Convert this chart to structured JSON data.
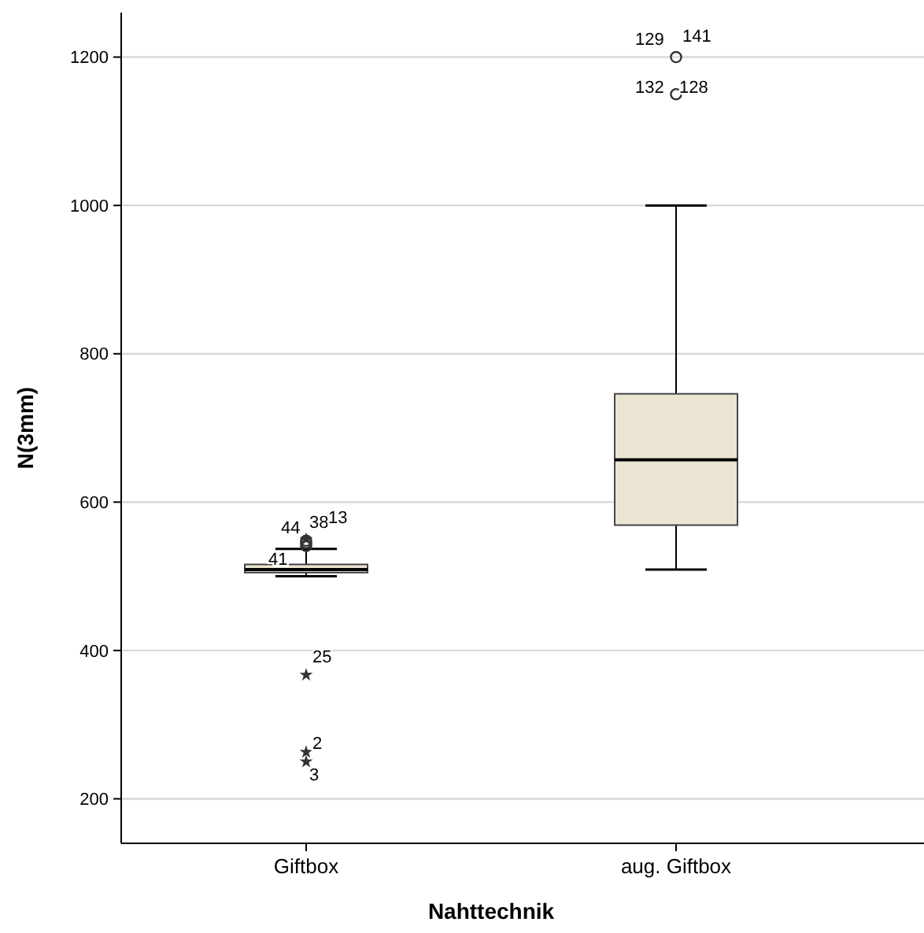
{
  "chart_data": {
    "type": "box",
    "xlabel": "Nahttechnik",
    "ylabel": "N(3mm)",
    "categories": [
      "Giftbox",
      "aug. Giftbox"
    ],
    "color": "#ebe5d3",
    "boxes": [
      {
        "low": 500,
        "q1": 505,
        "median": 509,
        "q3": 516,
        "high": 537,
        "outliers": [
          541,
          545,
          548,
          550,
          367,
          263,
          250
        ]
      },
      {
        "low": 509,
        "q1": 569,
        "median": 657,
        "q3": 746,
        "high": 1000,
        "outliers": [
          1200,
          1150
        ]
      }
    ],
    "ylim": [
      140,
      1260
    ],
    "yticks": [
      200,
      400,
      600,
      800,
      1000,
      1200
    ],
    "grid": "y",
    "annotations": [
      "44",
      "38",
      "13",
      "41",
      "25",
      "2",
      "3",
      "129",
      "141",
      "132",
      "128"
    ]
  }
}
